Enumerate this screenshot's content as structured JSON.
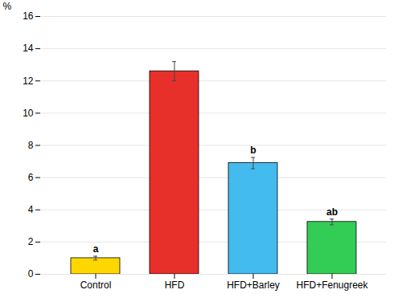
{
  "chart_data": {
    "type": "bar",
    "categories": [
      "Control",
      "HFD",
      "HFD+Barley",
      "HFD+Fenugreek"
    ],
    "values": [
      1.0,
      12.6,
      6.9,
      3.25
    ],
    "errors": [
      0.12,
      0.6,
      0.35,
      0.18
    ],
    "colors": [
      "#FFD700",
      "#E8302A",
      "#44BBEE",
      "#33CC55"
    ],
    "annotations": [
      "a",
      null,
      "b",
      "ab"
    ],
    "ylabel": "%",
    "ylim": [
      0,
      16
    ],
    "yticks": [
      0,
      2,
      4,
      6,
      8,
      10,
      12,
      14,
      16
    ],
    "grid": true
  }
}
